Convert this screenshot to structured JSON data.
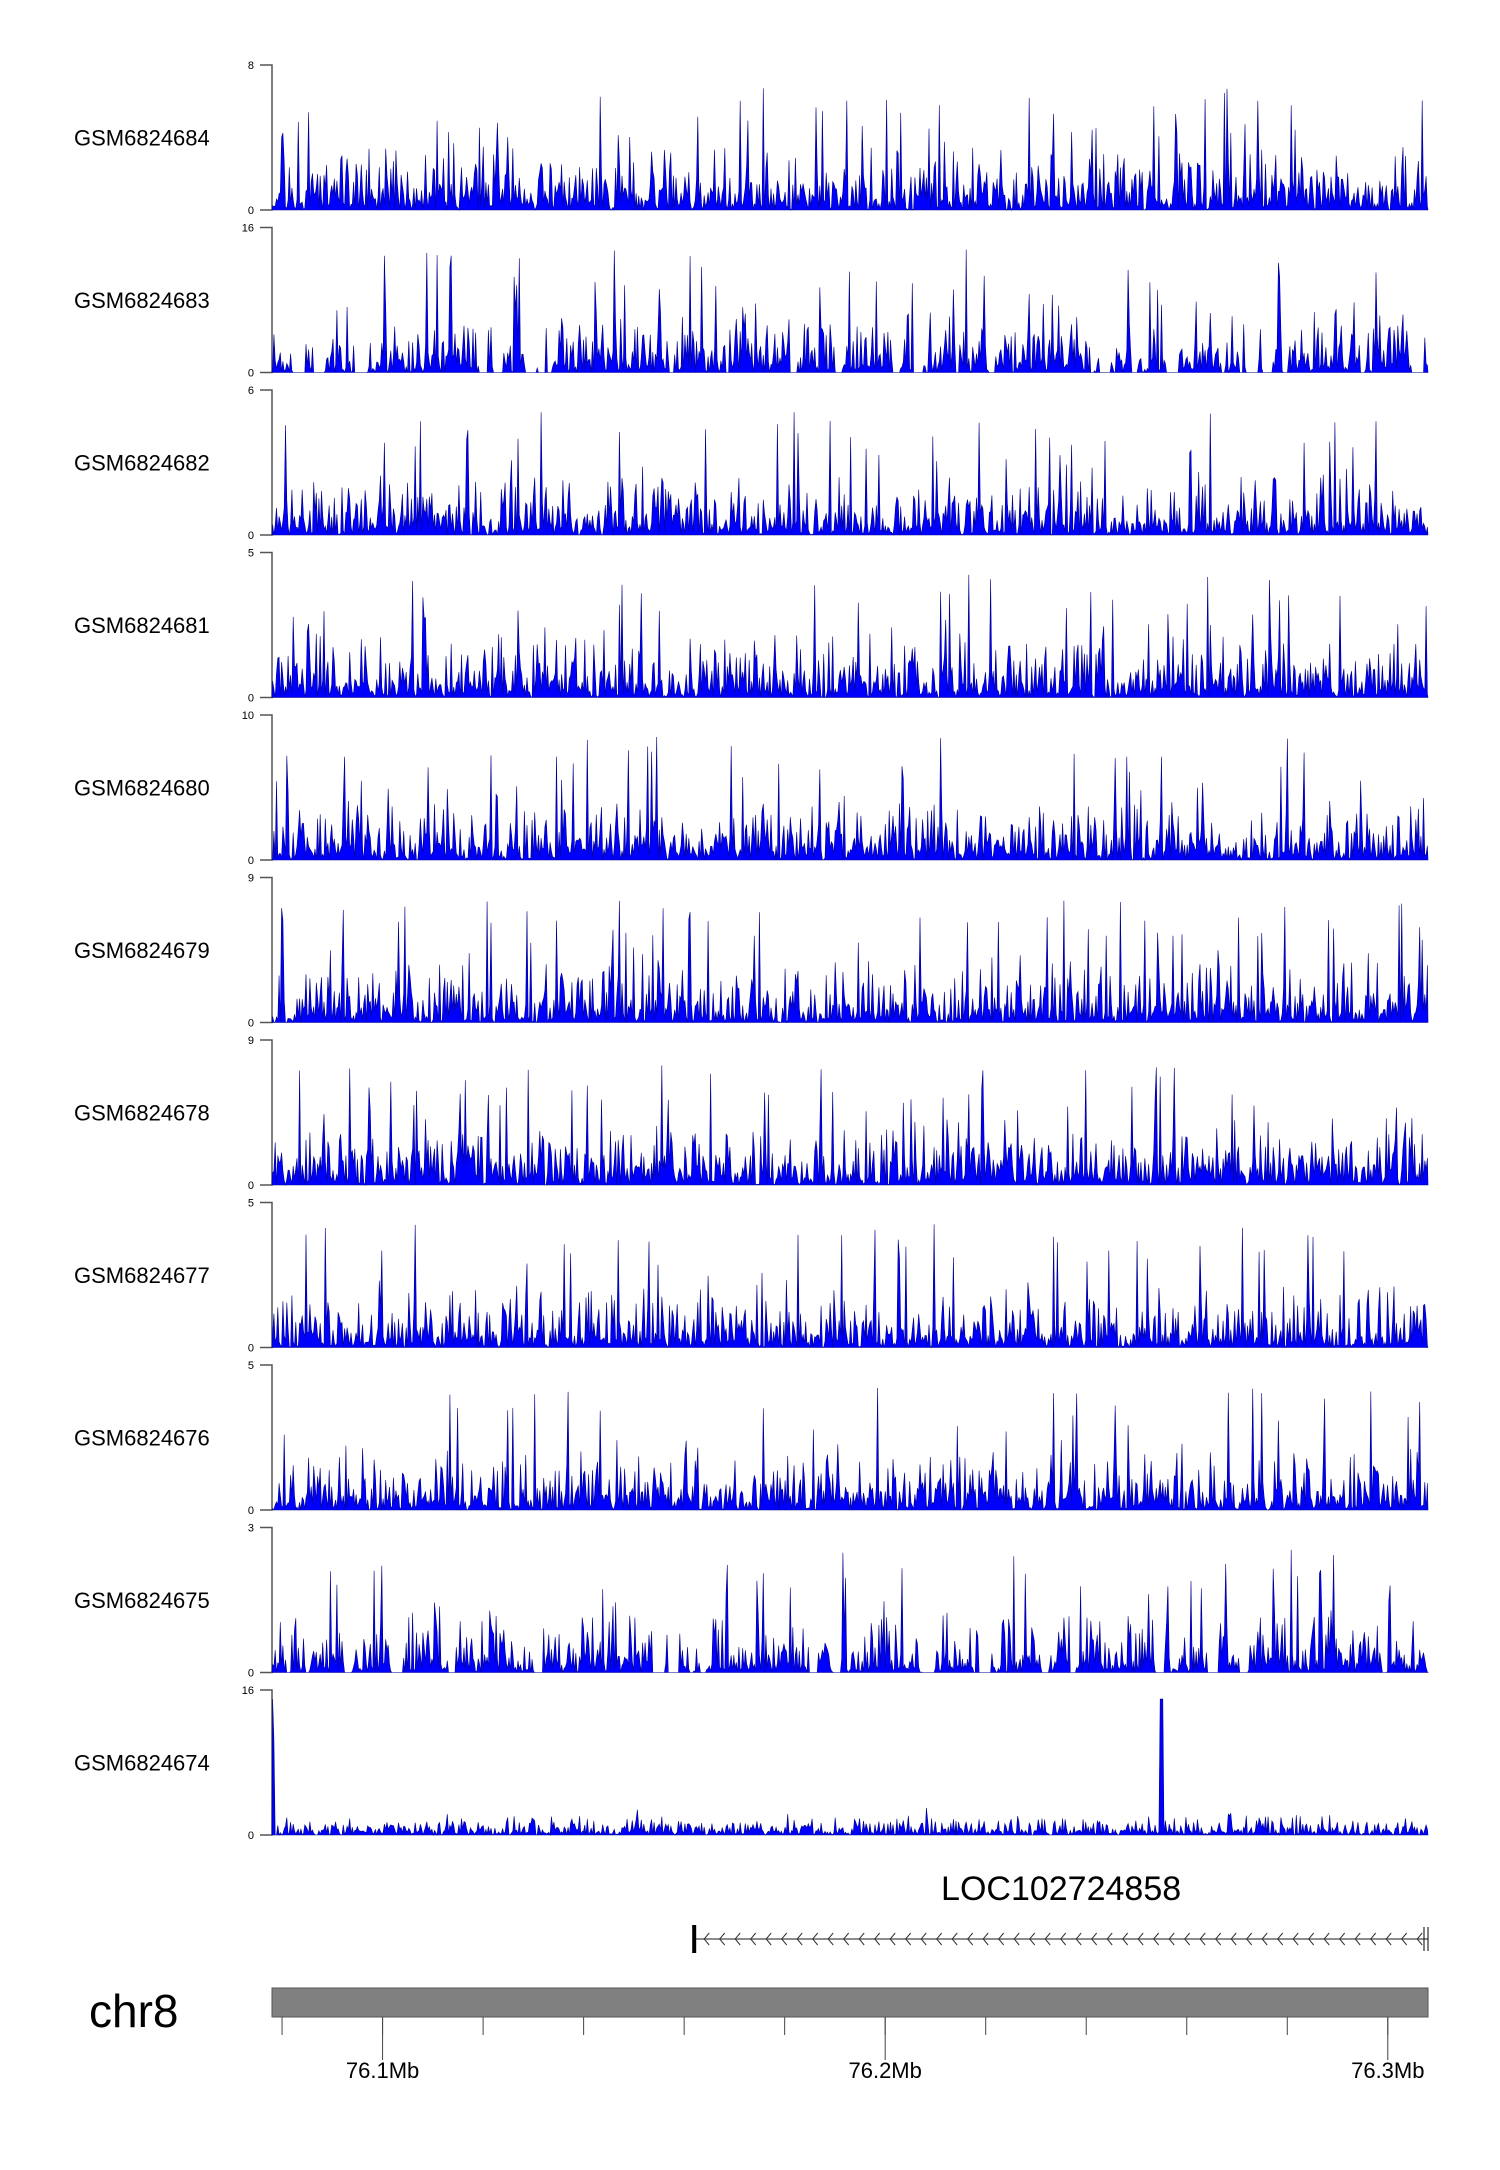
{
  "chart_data": {
    "type": "area",
    "chromosome": "chr8",
    "xrange_mb": [
      76.078,
      76.308
    ],
    "x_ticks_mb": [
      76.08,
      76.1,
      76.12,
      76.14,
      76.16,
      76.18,
      76.2,
      76.22,
      76.24,
      76.26,
      76.28,
      76.3
    ],
    "x_tick_labels": [
      {
        "mb": 76.1,
        "label": "76.1Mb"
      },
      {
        "mb": 76.2,
        "label": "76.2Mb"
      },
      {
        "mb": 76.3,
        "label": "76.3Mb"
      }
    ],
    "series_color": "#0000ff",
    "series_stroke": "#00008b",
    "tracks": [
      {
        "name": "GSM6824684",
        "ylim": [
          0,
          8
        ],
        "ymin_label": "0",
        "ymax_label": "8",
        "seed": 11,
        "gaps": false
      },
      {
        "name": "GSM6824683",
        "ylim": [
          0,
          16
        ],
        "ymin_label": "0",
        "ymax_label": "16",
        "seed": 23,
        "gaps": true
      },
      {
        "name": "GSM6824682",
        "ylim": [
          0,
          6
        ],
        "ymin_label": "0",
        "ymax_label": "6",
        "seed": 37,
        "gaps": false
      },
      {
        "name": "GSM6824681",
        "ylim": [
          0,
          5
        ],
        "ymin_label": "0",
        "ymax_label": "5",
        "seed": 41,
        "gaps": false
      },
      {
        "name": "GSM6824680",
        "ylim": [
          0,
          10
        ],
        "ymin_label": "0",
        "ymax_label": "10",
        "seed": 53,
        "gaps": false
      },
      {
        "name": "GSM6824679",
        "ylim": [
          0,
          9
        ],
        "ymin_label": "0",
        "ymax_label": "9",
        "seed": 67,
        "gaps": false
      },
      {
        "name": "GSM6824678",
        "ylim": [
          0,
          9
        ],
        "ymin_label": "0",
        "ymax_label": "9",
        "seed": 71,
        "gaps": false
      },
      {
        "name": "GSM6824677",
        "ylim": [
          0,
          5
        ],
        "ymin_label": "0",
        "ymax_label": "5",
        "seed": 83,
        "gaps": false
      },
      {
        "name": "GSM6824676",
        "ylim": [
          0,
          5
        ],
        "ymin_label": "0",
        "ymax_label": "5",
        "seed": 97,
        "gaps": false
      },
      {
        "name": "GSM6824675",
        "ylim": [
          0,
          3
        ],
        "ymin_label": "0",
        "ymax_label": "3",
        "seed": 101,
        "gaps": true
      },
      {
        "name": "GSM6824674",
        "ylim": [
          0,
          16
        ],
        "ymin_label": "0",
        "ymax_label": "16",
        "seed": 113,
        "gaps": false,
        "low_background": true,
        "peaks": [
          {
            "mb": 76.078,
            "value": 15
          },
          {
            "mb": 76.255,
            "value": 15
          }
        ]
      }
    ],
    "gene": {
      "name": "LOC102724858",
      "start_mb": 76.162,
      "end_mb": 76.308,
      "strand": "-"
    }
  }
}
